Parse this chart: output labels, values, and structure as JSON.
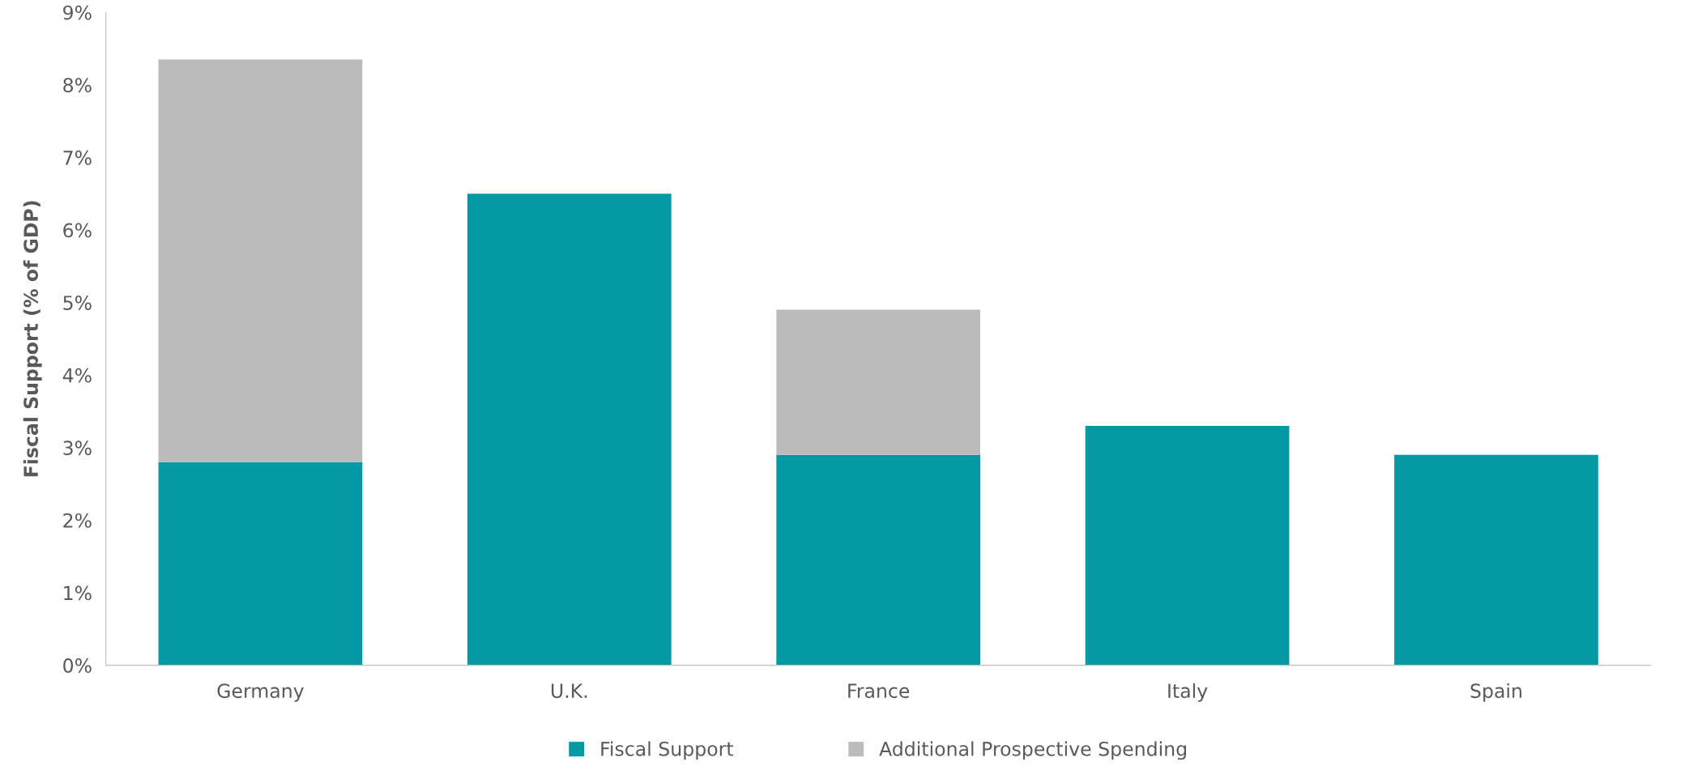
{
  "chart_data": {
    "type": "bar",
    "stacked": true,
    "ylabel": "Fiscal Support (% of GDP)",
    "categories": [
      "Germany",
      "U.K.",
      "France",
      "Italy",
      "Spain"
    ],
    "series": [
      {
        "name": "Fiscal Support",
        "color": "#0599a3",
        "values": [
          2.8,
          6.5,
          2.9,
          3.3,
          2.9
        ]
      },
      {
        "name": "Additional Prospective Spending",
        "color": "#bbbbbb",
        "values": [
          5.55,
          null,
          2.0,
          null,
          null
        ]
      }
    ],
    "ylim": [
      0,
      9
    ],
    "yticks": [
      {
        "value": 0,
        "label": "0%"
      },
      {
        "value": 1,
        "label": "1%"
      },
      {
        "value": 2,
        "label": "2%"
      },
      {
        "value": 3,
        "label": "3%"
      },
      {
        "value": 4,
        "label": "4%"
      },
      {
        "value": 5,
        "label": "5%"
      },
      {
        "value": 6,
        "label": "6%"
      },
      {
        "value": 7,
        "label": "7%"
      },
      {
        "value": 8,
        "label": "8%"
      },
      {
        "value": 9,
        "label": "9%"
      }
    ],
    "grid": false,
    "legend": "bottom"
  }
}
